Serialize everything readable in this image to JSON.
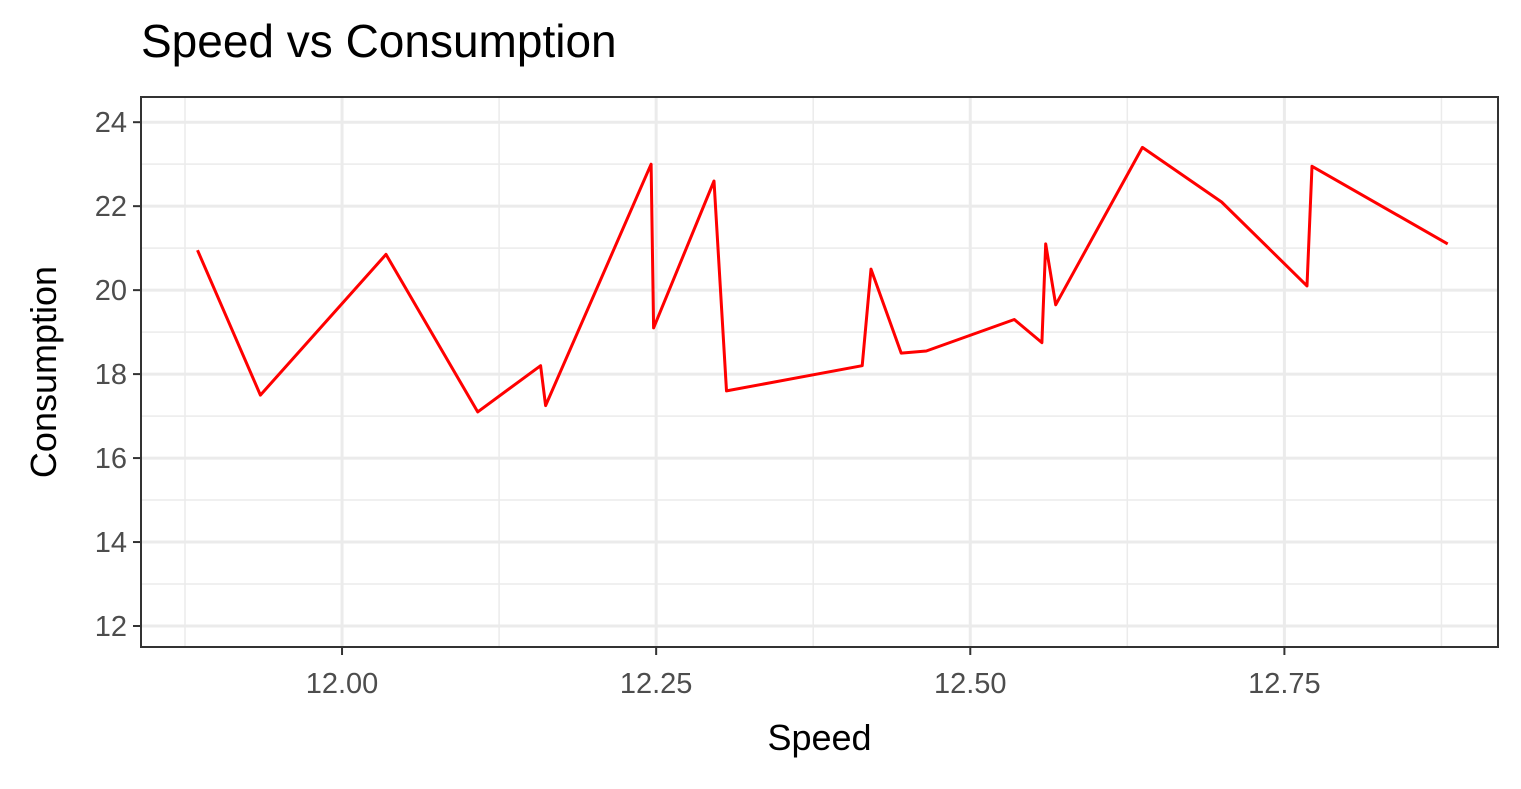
{
  "chart_data": {
    "type": "line",
    "title": "Speed vs Consumption",
    "xlabel": "Speed",
    "ylabel": "Consumption",
    "xlim": [
      11.84,
      12.92
    ],
    "ylim": [
      11.5,
      24.6
    ],
    "x_ticks": [
      12.0,
      12.25,
      12.5,
      12.75
    ],
    "x_tick_labels": [
      "12.00",
      "12.25",
      "12.50",
      "12.75"
    ],
    "y_ticks": [
      12,
      14,
      16,
      18,
      20,
      22,
      24
    ],
    "y_tick_labels": [
      "12",
      "14",
      "16",
      "18",
      "20",
      "22",
      "24"
    ],
    "grid": true,
    "legend": "none",
    "series": [
      {
        "color": "#ff0000",
        "x": [
          11.885,
          11.935,
          12.035,
          12.108,
          12.158,
          12.162,
          12.246,
          12.248,
          12.296,
          12.306,
          12.414,
          12.421,
          12.445,
          12.465,
          12.535,
          12.557,
          12.56,
          12.568,
          12.637,
          12.7,
          12.768,
          12.772,
          12.88
        ],
        "y": [
          20.95,
          17.5,
          20.85,
          17.1,
          18.2,
          17.25,
          23.0,
          19.1,
          22.6,
          17.6,
          18.2,
          20.5,
          18.5,
          18.55,
          19.3,
          18.75,
          21.1,
          19.65,
          23.4,
          22.1,
          20.1,
          22.95,
          21.1
        ]
      }
    ]
  }
}
